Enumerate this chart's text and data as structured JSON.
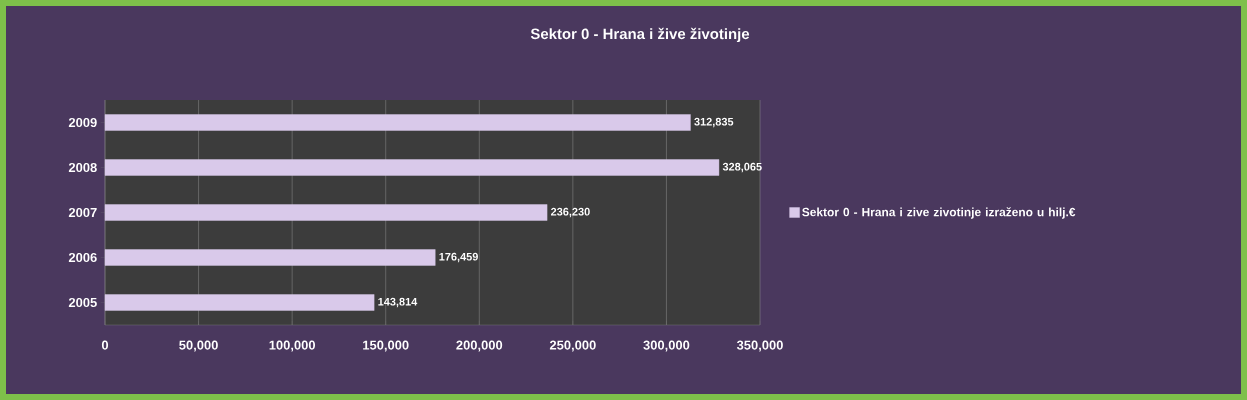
{
  "chart_data": {
    "type": "bar",
    "orientation": "horizontal",
    "title": "Sektor 0 - Hrana i žive životinje",
    "categories": [
      "2009",
      "2008",
      "2007",
      "2006",
      "2005"
    ],
    "series": [
      {
        "name": "Sektor 0 - Hrana i zive zivotinje izraženo u hilj.€",
        "color": "#d9c9ea",
        "values": [
          312835,
          328065,
          236230,
          176459,
          143814
        ],
        "value_labels": [
          "312,835",
          "328,065",
          "236,230",
          "176,459",
          "143,814"
        ]
      }
    ],
    "xlim": [
      0,
      350000
    ],
    "xticks": [
      0,
      {
        "value": 50000,
        "label": "50,000"
      },
      {
        "value": 100000,
        "label": "100,000"
      },
      {
        "value": 150000,
        "label": "150,000"
      },
      {
        "value": 200000,
        "label": "200,000"
      },
      {
        "value": 250000,
        "label": "250,000"
      },
      {
        "value": 300000,
        "label": "300,000"
      },
      {
        "value": 350000,
        "label": "350,000"
      }
    ],
    "grid": "x",
    "legend": "right"
  }
}
